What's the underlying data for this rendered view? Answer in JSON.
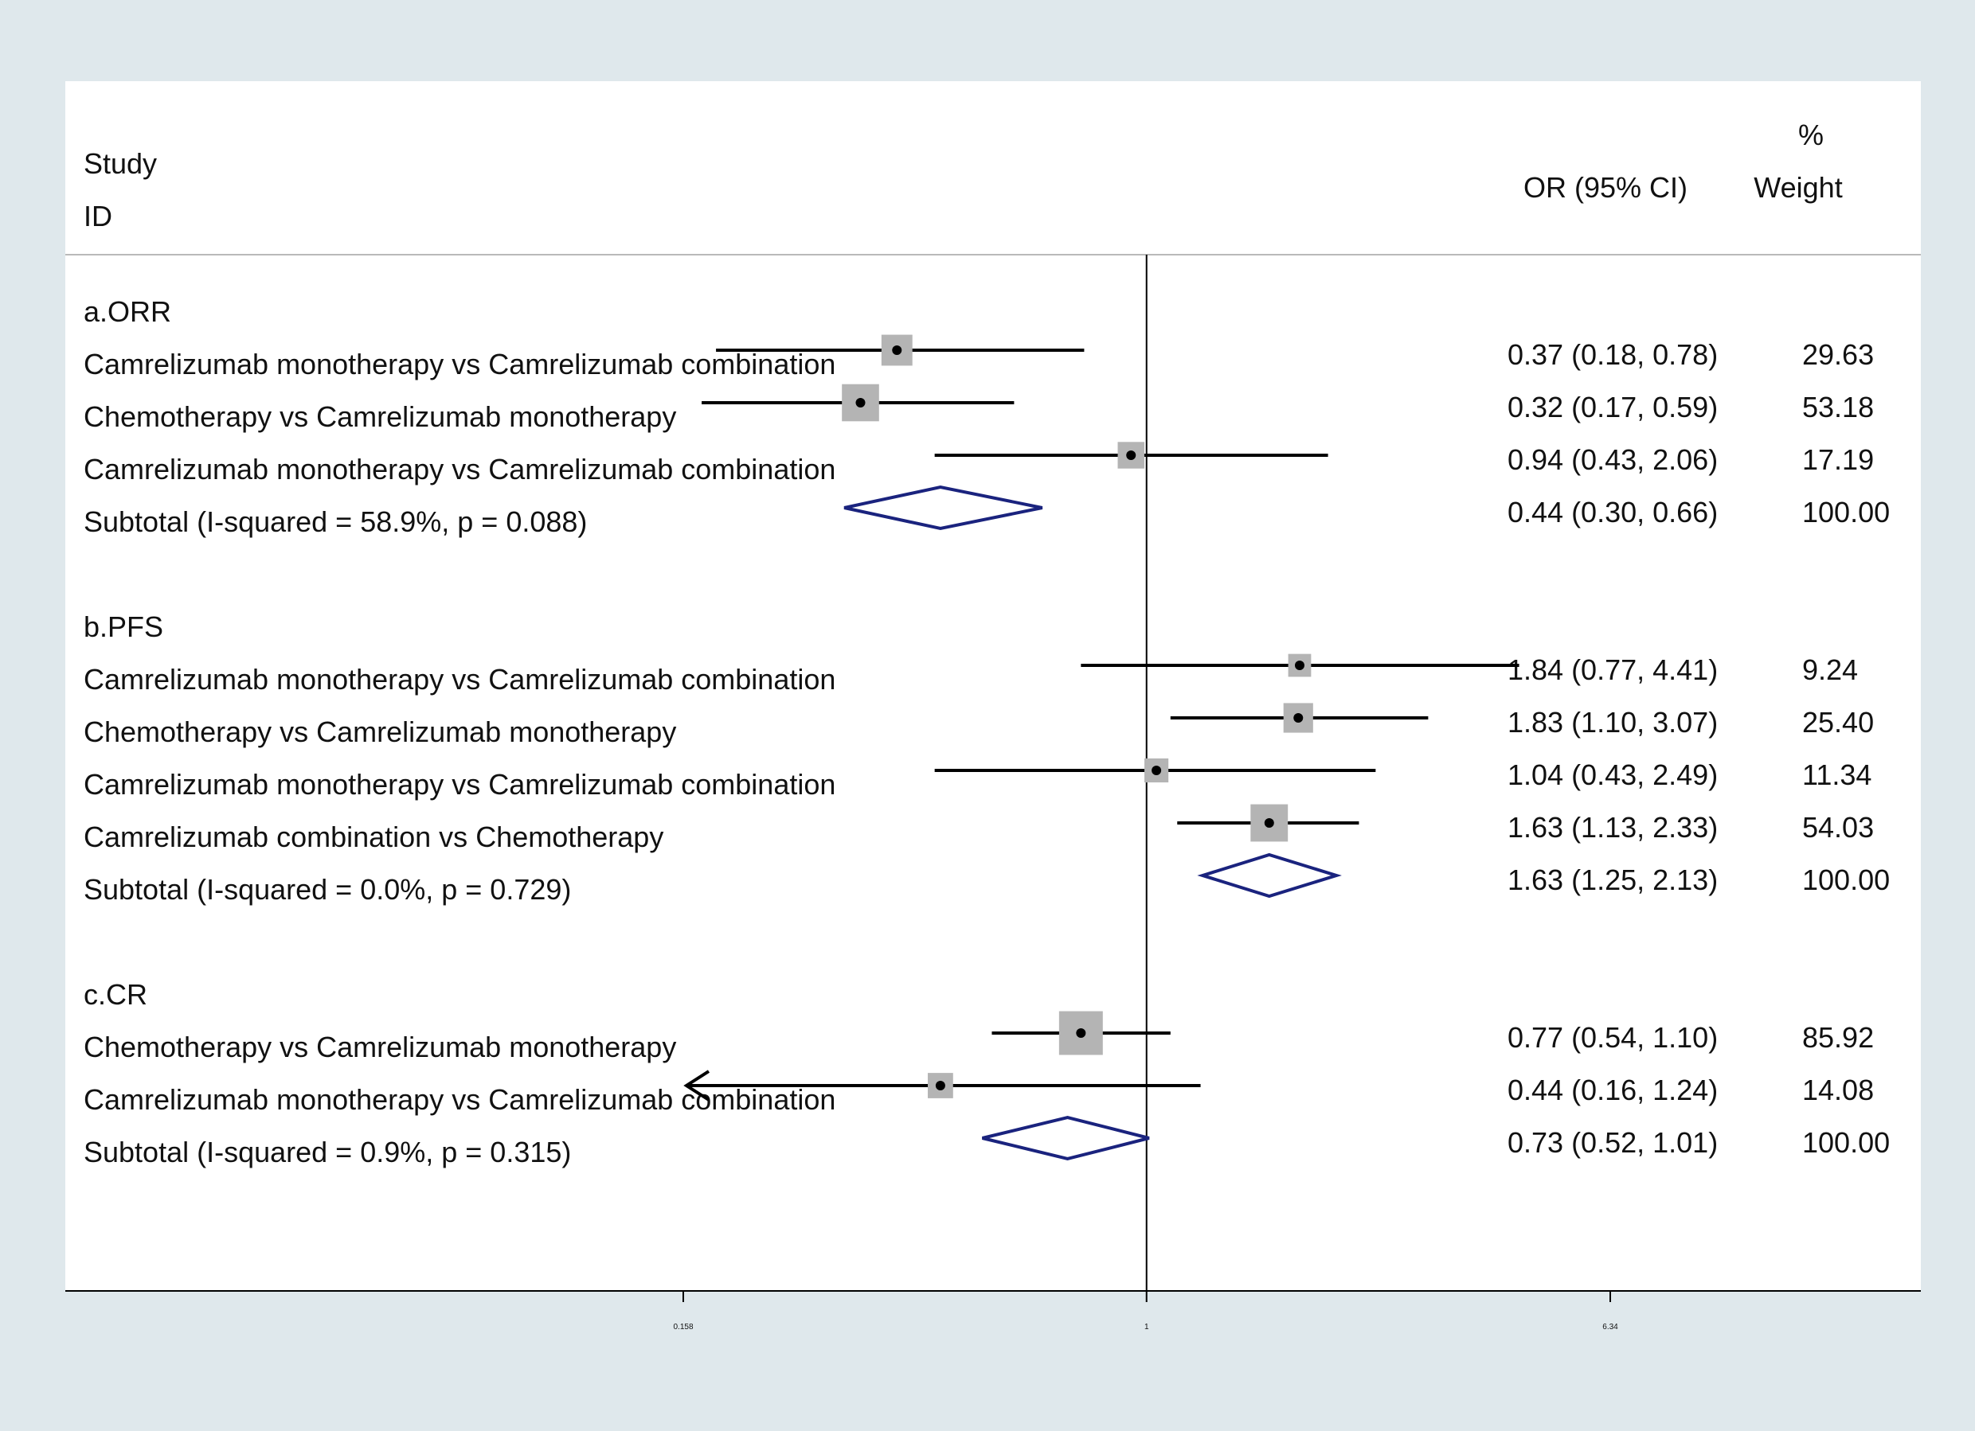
{
  "header": {
    "study_label": "Study",
    "id_label": "ID",
    "or_label": "OR (95% CI)",
    "pct_label": "%",
    "weight_label": "Weight"
  },
  "chart_data": {
    "type": "forest",
    "scale": "log",
    "null_line": 1,
    "xlim": [
      0.158,
      6.34
    ],
    "xticks": [
      "0.158",
      "1",
      "6.34"
    ],
    "subgroups": [
      {
        "label": "a.ORR",
        "studies": [
          {
            "label": "Camrelizumab monotherapy vs Camrelizumab combination",
            "or": 0.37,
            "lo": 0.18,
            "hi": 0.78,
            "ci": "0.37 (0.18, 0.78)",
            "weight": "29.63"
          },
          {
            "label": "Chemotherapy  vs Camrelizumab monotherapy",
            "or": 0.32,
            "lo": 0.17,
            "hi": 0.59,
            "ci": "0.32 (0.17, 0.59)",
            "weight": "53.18"
          },
          {
            "label": "Camrelizumab monotherapy vs Camrelizumab combination",
            "or": 0.94,
            "lo": 0.43,
            "hi": 2.06,
            "ci": "0.94 (0.43, 2.06)",
            "weight": "17.19"
          }
        ],
        "subtotal": {
          "label": "Subtotal  (I-squared = 58.9%, p = 0.088)",
          "or": 0.44,
          "lo": 0.3,
          "hi": 0.66,
          "ci": "0.44 (0.30, 0.66)",
          "weight": "100.00"
        }
      },
      {
        "label": "b.PFS",
        "studies": [
          {
            "label": "Camrelizumab monotherapy vs Camrelizumab combination",
            "or": 1.84,
            "lo": 0.77,
            "hi": 4.41,
            "ci": "1.84 (0.77, 4.41)",
            "weight": "9.24"
          },
          {
            "label": "Chemotherapy  vs Camrelizumab monotherapy",
            "or": 1.83,
            "lo": 1.1,
            "hi": 3.07,
            "ci": "1.83 (1.10, 3.07)",
            "weight": "25.40"
          },
          {
            "label": "Camrelizumab monotherapy vs Camrelizumab combination",
            "or": 1.04,
            "lo": 0.43,
            "hi": 2.49,
            "ci": "1.04 (0.43, 2.49)",
            "weight": "11.34"
          },
          {
            "label": "Camrelizumab combination vs Chemotherapy",
            "or": 1.63,
            "lo": 1.13,
            "hi": 2.33,
            "ci": "1.63 (1.13, 2.33)",
            "weight": "54.03"
          }
        ],
        "subtotal": {
          "label": "Subtotal  (I-squared = 0.0%, p = 0.729)",
          "or": 1.63,
          "lo": 1.25,
          "hi": 2.13,
          "ci": "1.63 (1.25, 2.13)",
          "weight": "100.00"
        }
      },
      {
        "label": "c.CR",
        "studies": [
          {
            "label": "Chemotherapy  vs Camrelizumab monotherapy",
            "or": 0.77,
            "lo": 0.54,
            "hi": 1.1,
            "ci": "0.77 (0.54, 1.10)",
            "weight": "85.92"
          },
          {
            "label": "Camrelizumab monotherapy vs Camrelizumab combination",
            "or": 0.44,
            "lo": 0.16,
            "hi": 1.24,
            "ci": "0.44 (0.16, 1.24)",
            "weight": "14.08",
            "arrow_left": true
          }
        ],
        "subtotal": {
          "label": "Subtotal  (I-squared = 0.9%, p = 0.315)",
          "or": 0.73,
          "lo": 0.52,
          "hi": 1.01,
          "ci": "0.73 (0.52, 1.01)",
          "weight": "100.00"
        }
      }
    ],
    "colors": {
      "background": "#dfe8ec",
      "panel": "#ffffff",
      "line": "#000000",
      "box": "#b4b4b4",
      "diamond": "#1a237e"
    }
  }
}
